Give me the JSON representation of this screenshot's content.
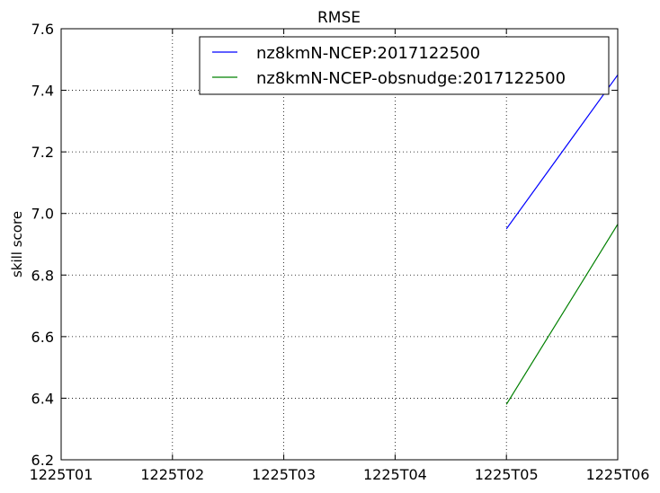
{
  "chart_data": {
    "type": "line",
    "title": "RMSE",
    "xlabel": "",
    "ylabel": "skill score",
    "categories": [
      "1225T01",
      "1225T02",
      "1225T03",
      "1225T04",
      "1225T05",
      "1225T06"
    ],
    "ylim": [
      6.2,
      7.6
    ],
    "yticks": [
      "6.2",
      "6.4",
      "6.6",
      "6.8",
      "7.0",
      "7.2",
      "7.4",
      "7.6"
    ],
    "grid": true,
    "legend_position": "top-right",
    "series": [
      {
        "name": "nz8kmN-NCEP:2017122500",
        "color": "#0000ff",
        "values": [
          null,
          null,
          null,
          null,
          6.95,
          7.45
        ]
      },
      {
        "name": "nz8kmN-NCEP-obsnudge:2017122500",
        "color": "#008000",
        "values": [
          null,
          null,
          null,
          null,
          6.38,
          6.965
        ]
      }
    ]
  }
}
